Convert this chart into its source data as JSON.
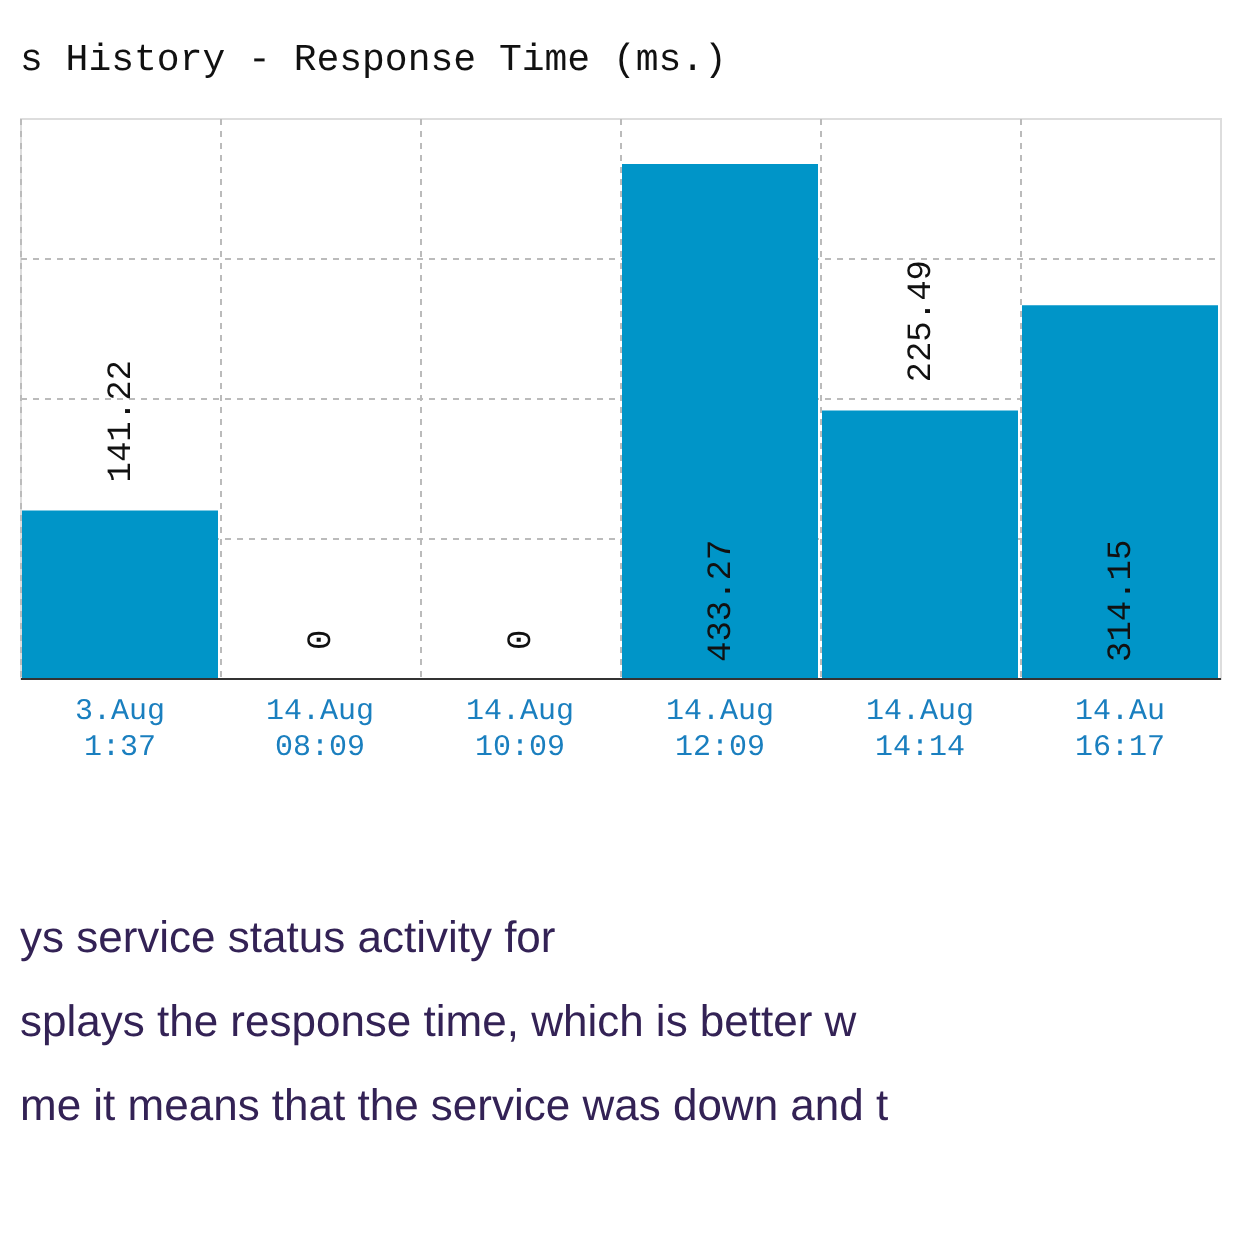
{
  "chart_data": {
    "type": "bar",
    "title": "s History - Response Time (ms.)",
    "categories": [
      "3.Aug 1:37",
      "14.Aug 08:09",
      "14.Aug 10:09",
      "14.Aug 12:09",
      "14.Aug 14:14",
      "14.Au 16:17"
    ],
    "values": [
      141.22,
      0,
      0,
      433.27,
      225.49,
      314.15
    ],
    "color": "#0095c8",
    "data_labels": true,
    "ylim": [
      0,
      472
    ],
    "yticks": [
      {
        "value": 118,
        "label": null
      },
      {
        "value": 236,
        "label": null
      },
      {
        "value": 354,
        "label": null
      }
    ],
    "tick_labels": "x",
    "grid": true,
    "annotations": [
      "ys service status activity for",
      "splays the response time, which is better w",
      "me it means that the service was down and t"
    ]
  }
}
